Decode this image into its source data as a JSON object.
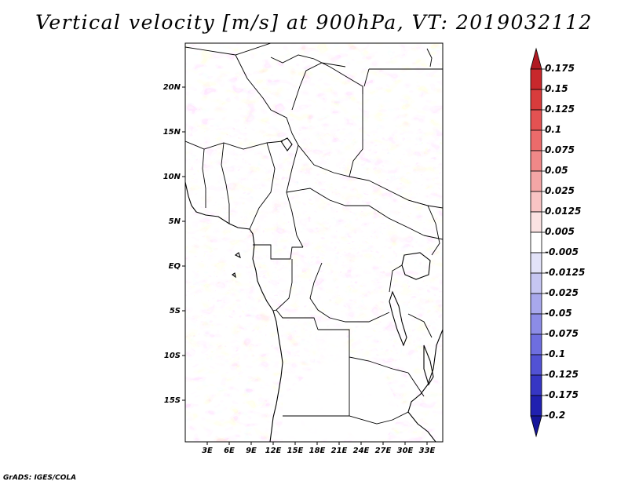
{
  "title": "Vertical velocity [m/s] at 900hPa, VT: 2019032112",
  "footer": "GrADS: IGES/COLA",
  "lat_labels": [
    "20N",
    "15N",
    "10N",
    "5N",
    "EQ",
    "5S",
    "10S",
    "15S"
  ],
  "lon_labels": [
    "3E",
    "6E",
    "9E",
    "12E",
    "15E",
    "18E",
    "21E",
    "24E",
    "27E",
    "30E",
    "33E"
  ],
  "colorbar": {
    "labels": [
      "0.175",
      "0.15",
      "0.125",
      "0.1",
      "0.075",
      "0.05",
      "0.025",
      "0.0125",
      "0.005",
      "-0.005",
      "-0.0125",
      "-0.025",
      "-0.05",
      "-0.075",
      "-0.1",
      "-0.125",
      "-0.175",
      "-0.2"
    ],
    "colors": [
      "#b01a22",
      "#c8282c",
      "#d83c3c",
      "#e35252",
      "#eb6b6b",
      "#f08888",
      "#f4a6a6",
      "#f8c4c4",
      "#fbe2e2",
      "#ffffff",
      "#e2e2f8",
      "#c6c6f2",
      "#a8a8ec",
      "#8c8ce6",
      "#6e6edf",
      "#5252d4",
      "#3636c4",
      "#2020b0",
      "#16169a"
    ]
  }
}
